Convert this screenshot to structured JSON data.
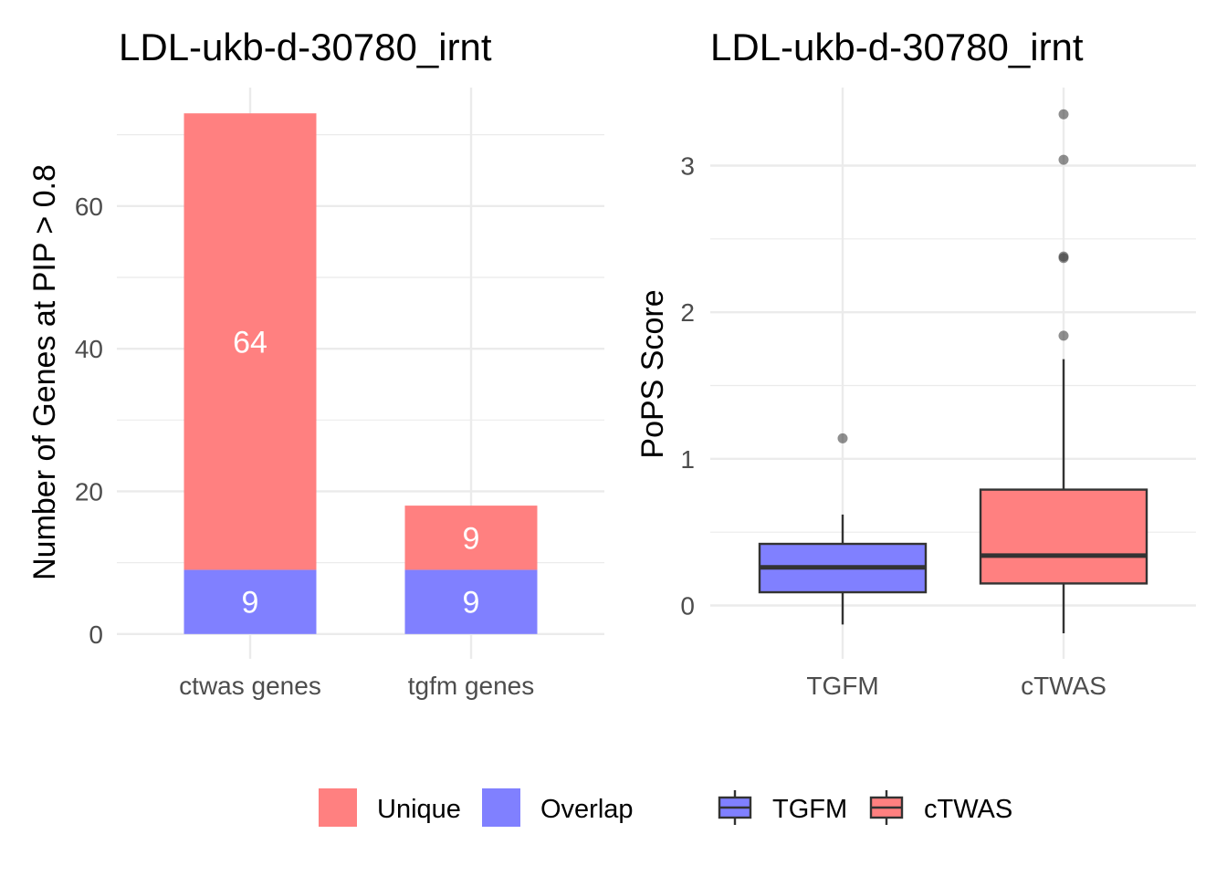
{
  "chart_data": [
    {
      "type": "bar",
      "stacked": true,
      "title": "LDL-ukb-d-30780_irnt",
      "xlabel": "",
      "ylabel": "Number of Genes at PIP > 0.8",
      "categories": [
        "ctwas genes",
        "tgfm genes"
      ],
      "series": [
        {
          "name": "Overlap",
          "values": [
            9,
            9
          ],
          "color": "#8080ff"
        },
        {
          "name": "Unique",
          "values": [
            64,
            9
          ],
          "color": "#ff8080"
        }
      ],
      "ylim": [
        0,
        73
      ],
      "yticks": [
        0,
        20,
        40,
        60
      ],
      "grid": true
    },
    {
      "type": "box",
      "title": "LDL-ukb-d-30780_irnt",
      "xlabel": "",
      "ylabel": "PoPS Score",
      "categories": [
        "TGFM",
        "cTWAS"
      ],
      "boxes": [
        {
          "name": "TGFM",
          "color": "#8080ff",
          "whisker_low": -0.13,
          "q1": 0.09,
          "median": 0.26,
          "q3": 0.42,
          "whisker_high": 0.62,
          "outliers": [
            1.14
          ]
        },
        {
          "name": "cTWAS",
          "color": "#ff8080",
          "whisker_low": -0.19,
          "q1": 0.15,
          "median": 0.34,
          "q3": 0.79,
          "whisker_high": 1.68,
          "outliers": [
            1.84,
            2.37,
            2.38,
            3.04,
            3.35
          ]
        }
      ],
      "ylim": [
        -0.2,
        3.5
      ],
      "yticks": [
        0,
        1,
        2,
        3
      ],
      "grid": true
    }
  ],
  "legend": {
    "placement": "bottom",
    "fill_items": [
      {
        "label": "Unique",
        "color": "#ff8080"
      },
      {
        "label": "Overlap",
        "color": "#8080ff"
      }
    ],
    "box_items": [
      {
        "label": "TGFM",
        "color": "#8080ff"
      },
      {
        "label": "cTWAS",
        "color": "#ff8080"
      }
    ]
  }
}
